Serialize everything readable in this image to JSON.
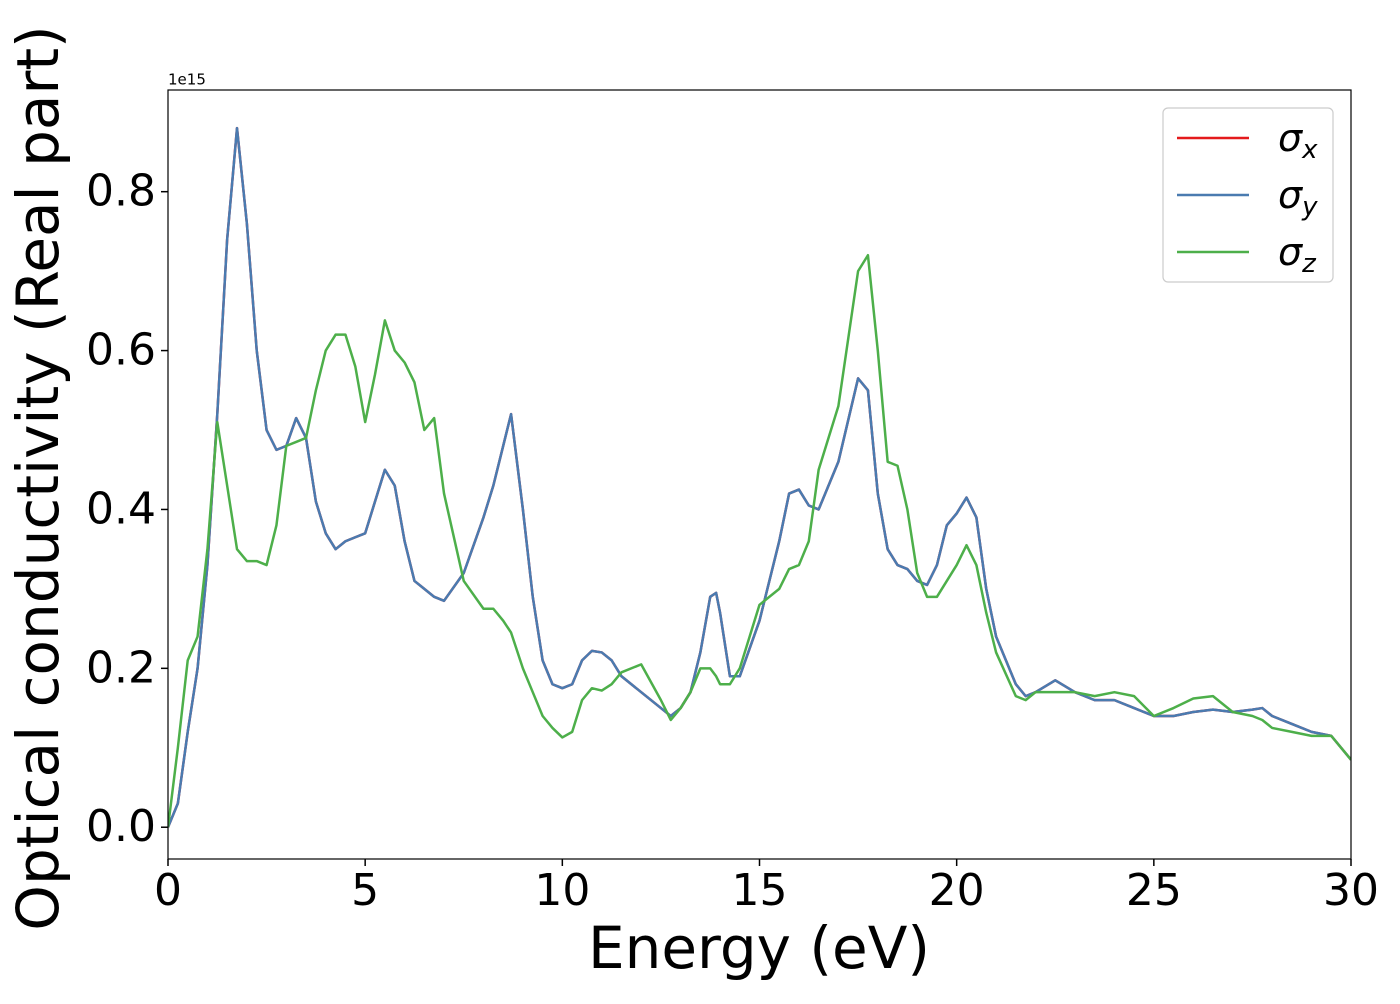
{
  "chart_data": {
    "type": "line",
    "xlabel": "Energy (eV)",
    "ylabel": "Optical conductivity (Real part)",
    "y_offset_label": "1e15",
    "x": [
      0,
      0.25,
      0.5,
      0.75,
      1.0,
      1.25,
      1.5,
      1.75,
      2.0,
      2.25,
      2.5,
      2.75,
      3.0,
      3.25,
      3.5,
      3.75,
      4.0,
      4.25,
      4.5,
      4.75,
      5.0,
      5.25,
      5.5,
      5.75,
      6.0,
      6.25,
      6.5,
      6.75,
      7.0,
      7.5,
      8.0,
      8.25,
      8.5,
      8.7,
      9.0,
      9.25,
      9.5,
      9.75,
      10.0,
      10.25,
      10.5,
      10.75,
      11.0,
      11.25,
      11.5,
      12.0,
      12.5,
      12.75,
      13.0,
      13.25,
      13.5,
      13.75,
      13.9,
      14.0,
      14.25,
      14.5,
      15.0,
      15.5,
      15.75,
      16.0,
      16.25,
      16.5,
      17.0,
      17.5,
      17.75,
      18.0,
      18.25,
      18.5,
      18.75,
      19.0,
      19.25,
      19.5,
      19.75,
      20.0,
      20.25,
      20.5,
      20.75,
      21.0,
      21.5,
      21.75,
      22.0,
      22.5,
      23.0,
      23.5,
      24.0,
      24.5,
      25.0,
      25.5,
      26.0,
      26.5,
      27.0,
      27.5,
      27.75,
      28.0,
      28.5,
      29.0,
      29.5,
      30.0
    ],
    "series": [
      {
        "name": "σx",
        "color": "#e41a1c",
        "values": [
          0,
          0.03,
          0.12,
          0.2,
          0.33,
          0.52,
          0.74,
          0.88,
          0.76,
          0.6,
          0.5,
          0.475,
          0.48,
          0.515,
          0.49,
          0.41,
          0.37,
          0.35,
          0.36,
          0.365,
          0.37,
          0.41,
          0.45,
          0.43,
          0.36,
          0.31,
          0.3,
          0.29,
          0.285,
          0.32,
          0.39,
          0.43,
          0.48,
          0.52,
          0.4,
          0.29,
          0.21,
          0.18,
          0.175,
          0.18,
          0.21,
          0.222,
          0.22,
          0.21,
          0.19,
          0.17,
          0.15,
          0.14,
          0.15,
          0.17,
          0.22,
          0.29,
          0.295,
          0.27,
          0.19,
          0.19,
          0.26,
          0.36,
          0.42,
          0.425,
          0.405,
          0.4,
          0.46,
          0.565,
          0.55,
          0.42,
          0.35,
          0.33,
          0.325,
          0.31,
          0.305,
          0.33,
          0.38,
          0.395,
          0.415,
          0.39,
          0.3,
          0.24,
          0.18,
          0.165,
          0.17,
          0.185,
          0.17,
          0.16,
          0.16,
          0.15,
          0.14,
          0.14,
          0.145,
          0.148,
          0.145,
          0.148,
          0.15,
          0.14,
          0.13,
          0.12,
          0.115,
          0.085
        ]
      },
      {
        "name": "σy",
        "color": "#4a7bb0",
        "values": [
          0,
          0.03,
          0.12,
          0.2,
          0.33,
          0.52,
          0.74,
          0.88,
          0.76,
          0.6,
          0.5,
          0.475,
          0.48,
          0.515,
          0.49,
          0.41,
          0.37,
          0.35,
          0.36,
          0.365,
          0.37,
          0.41,
          0.45,
          0.43,
          0.36,
          0.31,
          0.3,
          0.29,
          0.285,
          0.32,
          0.39,
          0.43,
          0.48,
          0.52,
          0.4,
          0.29,
          0.21,
          0.18,
          0.175,
          0.18,
          0.21,
          0.222,
          0.22,
          0.21,
          0.19,
          0.17,
          0.15,
          0.14,
          0.15,
          0.17,
          0.22,
          0.29,
          0.295,
          0.27,
          0.19,
          0.19,
          0.26,
          0.36,
          0.42,
          0.425,
          0.405,
          0.4,
          0.46,
          0.565,
          0.55,
          0.42,
          0.35,
          0.33,
          0.325,
          0.31,
          0.305,
          0.33,
          0.38,
          0.395,
          0.415,
          0.39,
          0.3,
          0.24,
          0.18,
          0.165,
          0.17,
          0.185,
          0.17,
          0.16,
          0.16,
          0.15,
          0.14,
          0.14,
          0.145,
          0.148,
          0.145,
          0.148,
          0.15,
          0.14,
          0.13,
          0.12,
          0.115,
          0.085
        ]
      },
      {
        "name": "σz",
        "color": "#4daf4a",
        "values": [
          0,
          0.1,
          0.21,
          0.24,
          0.35,
          0.51,
          0.43,
          0.35,
          0.335,
          0.335,
          0.33,
          0.38,
          0.48,
          0.485,
          0.49,
          0.55,
          0.6,
          0.62,
          0.62,
          0.58,
          0.51,
          0.57,
          0.638,
          0.6,
          0.585,
          0.56,
          0.5,
          0.515,
          0.42,
          0.31,
          0.275,
          0.275,
          0.26,
          0.245,
          0.2,
          0.17,
          0.14,
          0.125,
          0.113,
          0.12,
          0.16,
          0.175,
          0.172,
          0.18,
          0.195,
          0.205,
          0.16,
          0.135,
          0.15,
          0.17,
          0.2,
          0.2,
          0.19,
          0.18,
          0.18,
          0.2,
          0.28,
          0.3,
          0.325,
          0.33,
          0.36,
          0.45,
          0.53,
          0.7,
          0.72,
          0.6,
          0.46,
          0.455,
          0.4,
          0.32,
          0.29,
          0.29,
          0.31,
          0.33,
          0.355,
          0.33,
          0.27,
          0.22,
          0.165,
          0.16,
          0.17,
          0.17,
          0.17,
          0.165,
          0.17,
          0.165,
          0.14,
          0.15,
          0.162,
          0.165,
          0.145,
          0.14,
          0.135,
          0.125,
          0.12,
          0.115,
          0.115,
          0.085
        ]
      }
    ],
    "xlim": [
      0,
      30
    ],
    "xticks": [
      0,
      5,
      10,
      15,
      20,
      25,
      30
    ],
    "ylim": [
      -0.04,
      0.928
    ],
    "yticks": [
      {
        "value": 0,
        "label": "0.0"
      },
      0.2,
      0.4,
      0.6,
      0.8
    ],
    "grid": false,
    "legend": "upper right"
  }
}
